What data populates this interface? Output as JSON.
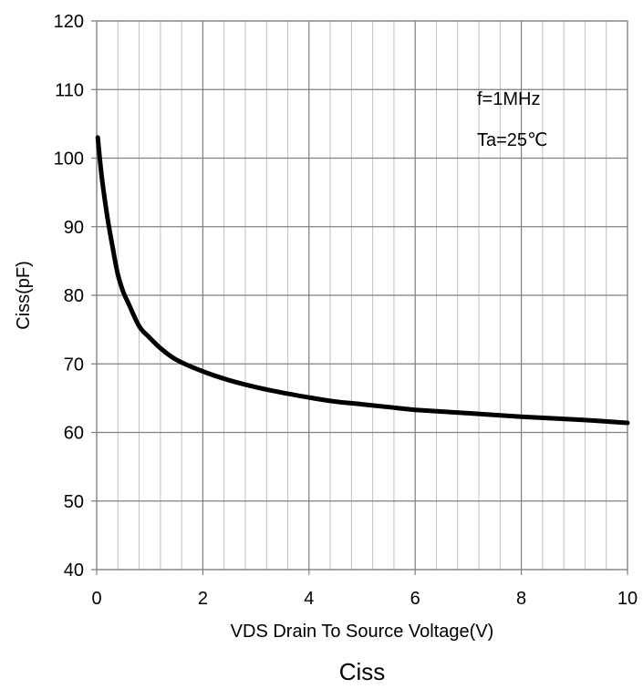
{
  "chart_data": {
    "type": "line",
    "title": "Ciss",
    "xlabel": "VDS Drain To Source Voltage(V)",
    "ylabel": "Ciss(pF)",
    "xlim": [
      0,
      10
    ],
    "ylim": [
      40,
      120
    ],
    "x_ticks": [
      0,
      2,
      4,
      6,
      8,
      10
    ],
    "x_tick_labels": [
      "0",
      "2",
      "4",
      "6",
      "8",
      "10"
    ],
    "x_minor_step": 0.4,
    "y_ticks": [
      40,
      50,
      60,
      70,
      80,
      90,
      100,
      110,
      120
    ],
    "y_tick_labels": [
      "40",
      "50",
      "60",
      "70",
      "80",
      "90",
      "100",
      "110",
      "120"
    ],
    "grid": true,
    "annotations": [
      "f=1MHz",
      "Ta=25℃"
    ],
    "colors": {
      "line": "#000000",
      "major_grid": "#7f7f7f",
      "minor_grid": "#bfbfbf",
      "background": "#ffffff"
    },
    "series": [
      {
        "x": [
          0.02,
          0.1,
          0.2,
          0.3,
          0.4,
          0.5,
          0.6,
          0.8,
          1.0,
          1.2,
          1.5,
          2.0,
          2.5,
          3.0,
          3.5,
          4.0,
          4.5,
          5.0,
          5.5,
          6.0,
          7.0,
          8.0,
          9.0,
          10.0
        ],
        "y": [
          103.0,
          97.0,
          91.5,
          87.0,
          83.0,
          80.5,
          78.8,
          75.5,
          73.8,
          72.3,
          70.6,
          68.9,
          67.6,
          66.6,
          65.8,
          65.1,
          64.5,
          64.1,
          63.7,
          63.3,
          62.8,
          62.3,
          61.9,
          61.4
        ]
      }
    ]
  }
}
